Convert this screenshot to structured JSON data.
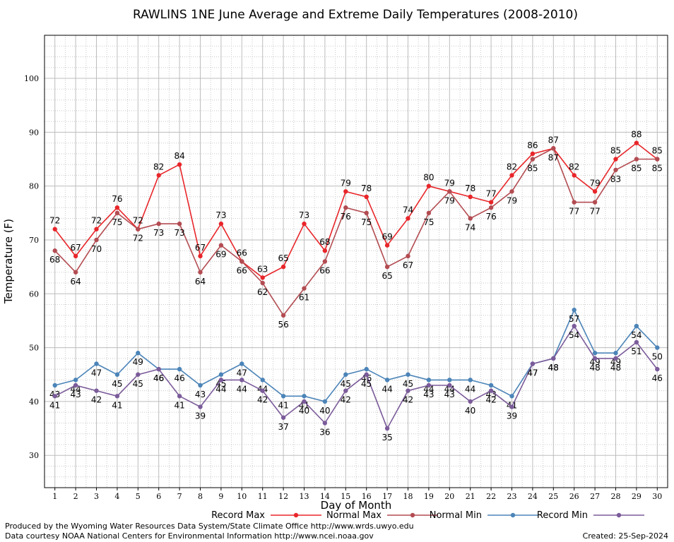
{
  "chart_data": {
    "type": "line",
    "title": "RAWLINS 1NE June Average and Extreme Daily Temperatures (2008-2010)",
    "xlabel": "Day of Month",
    "ylabel": "Temperature (F)",
    "x": [
      1,
      2,
      3,
      4,
      5,
      6,
      7,
      8,
      9,
      10,
      11,
      12,
      13,
      14,
      15,
      16,
      17,
      18,
      19,
      20,
      21,
      22,
      23,
      24,
      25,
      26,
      27,
      28,
      29,
      30
    ],
    "xlim": [
      0.5,
      30.5
    ],
    "ylim": [
      24,
      108
    ],
    "yticks": [
      30,
      40,
      50,
      60,
      70,
      80,
      90,
      100
    ],
    "grid": true,
    "legend_position": "bottom",
    "series": [
      {
        "name": "Record Max",
        "color": "#e8262a",
        "values": [
          72,
          67,
          72,
          76,
          72,
          82,
          84,
          67,
          73,
          66,
          63,
          65,
          73,
          68,
          79,
          78,
          69,
          74,
          80,
          79,
          78,
          77,
          82,
          86,
          87,
          82,
          79,
          85,
          88,
          85
        ]
      },
      {
        "name": "Normal Max",
        "color": "#b34c52",
        "values": [
          68,
          64,
          70,
          75,
          72,
          73,
          73,
          64,
          69,
          66,
          62,
          56,
          61,
          66,
          76,
          75,
          65,
          67,
          75,
          79,
          74,
          76,
          79,
          85,
          87,
          77,
          77,
          83,
          85,
          85
        ]
      },
      {
        "name": "Normal Min",
        "color": "#4b84b8",
        "values": [
          43,
          44,
          47,
          45,
          49,
          46,
          46,
          43,
          45,
          47,
          44,
          41,
          41,
          40,
          45,
          46,
          44,
          45,
          44,
          44,
          44,
          43,
          41,
          47,
          48,
          57,
          49,
          49,
          54,
          50
        ]
      },
      {
        "name": "Record Min",
        "color": "#7b5b9a",
        "values": [
          41,
          43,
          42,
          41,
          45,
          46,
          41,
          39,
          44,
          44,
          42,
          37,
          40,
          36,
          42,
          45,
          35,
          42,
          43,
          43,
          40,
          42,
          39,
          47,
          48,
          54,
          48,
          48,
          51,
          46
        ]
      }
    ]
  },
  "footer": {
    "produced_by": "Produced by the Wyoming Water Resources Data System/State Climate Office http://www.wrds.uwyo.edu",
    "courtesy": "Data courtesy NOAA National Centers for Environmental Information http://www.ncei.noaa.gov",
    "created": "Created:  25-Sep-2024"
  }
}
